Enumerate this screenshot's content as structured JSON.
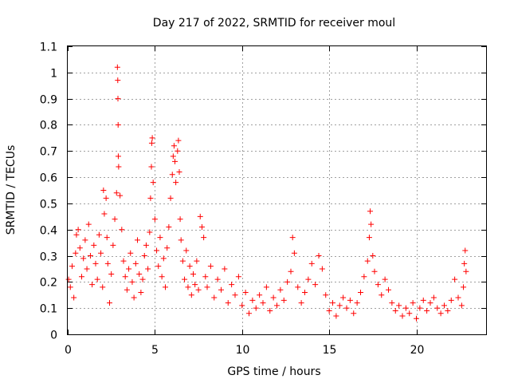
{
  "chart_data": {
    "type": "scatter",
    "title": "Day 217 of 2022, SRMTID for receiver moul",
    "xlabel": "GPS time / hours",
    "ylabel": "SRMTID / TECUs",
    "xlim": [
      0,
      24
    ],
    "ylim": [
      0,
      1.1
    ],
    "xticks": [
      0,
      5,
      10,
      15,
      20
    ],
    "yticks": [
      0,
      0.1,
      0.2,
      0.3,
      0.4,
      0.5,
      0.6,
      0.7,
      0.8,
      0.9,
      1,
      1.1
    ],
    "xtick_labels": [
      "0",
      "5",
      "10",
      "15",
      "20"
    ],
    "ytick_labels": [
      "0",
      "0.1",
      "0.2",
      "0.3",
      "0.4",
      "0.5",
      "0.6",
      "0.7",
      "0.8",
      "0.9",
      "1",
      "1.1"
    ],
    "grid": true,
    "marker": "+",
    "color": "#ff0000",
    "series": [
      {
        "name": "SRMTID",
        "points": [
          [
            0.05,
            0.21
          ],
          [
            0.15,
            0.18
          ],
          [
            0.25,
            0.26
          ],
          [
            0.35,
            0.14
          ],
          [
            0.45,
            0.31
          ],
          [
            0.5,
            0.38
          ],
          [
            0.6,
            0.4
          ],
          [
            0.7,
            0.33
          ],
          [
            0.8,
            0.22
          ],
          [
            0.9,
            0.29
          ],
          [
            1.0,
            0.36
          ],
          [
            1.1,
            0.25
          ],
          [
            1.2,
            0.42
          ],
          [
            1.3,
            0.3
          ],
          [
            1.4,
            0.19
          ],
          [
            1.5,
            0.34
          ],
          [
            1.6,
            0.27
          ],
          [
            1.7,
            0.21
          ],
          [
            1.8,
            0.38
          ],
          [
            1.9,
            0.31
          ],
          [
            2.0,
            0.18
          ],
          [
            2.05,
            0.55
          ],
          [
            2.1,
            0.46
          ],
          [
            2.2,
            0.52
          ],
          [
            2.25,
            0.37
          ],
          [
            2.3,
            0.27
          ],
          [
            2.4,
            0.12
          ],
          [
            2.5,
            0.23
          ],
          [
            2.6,
            0.34
          ],
          [
            2.7,
            0.44
          ],
          [
            2.8,
            0.54
          ],
          [
            2.85,
            1.02
          ],
          [
            2.87,
            0.97
          ],
          [
            2.88,
            0.9
          ],
          [
            2.89,
            0.8
          ],
          [
            2.9,
            0.68
          ],
          [
            2.92,
            0.64
          ],
          [
            3.0,
            0.53
          ],
          [
            3.1,
            0.4
          ],
          [
            3.2,
            0.28
          ],
          [
            3.3,
            0.22
          ],
          [
            3.4,
            0.17
          ],
          [
            3.5,
            0.25
          ],
          [
            3.6,
            0.31
          ],
          [
            3.7,
            0.2
          ],
          [
            3.8,
            0.14
          ],
          [
            3.9,
            0.27
          ],
          [
            4.0,
            0.36
          ],
          [
            4.1,
            0.23
          ],
          [
            4.2,
            0.16
          ],
          [
            4.3,
            0.21
          ],
          [
            4.4,
            0.3
          ],
          [
            4.5,
            0.34
          ],
          [
            4.6,
            0.25
          ],
          [
            4.7,
            0.39
          ],
          [
            4.75,
            0.52
          ],
          [
            4.8,
            0.64
          ],
          [
            4.82,
            0.73
          ],
          [
            4.85,
            0.75
          ],
          [
            4.9,
            0.58
          ],
          [
            5.0,
            0.44
          ],
          [
            5.1,
            0.32
          ],
          [
            5.2,
            0.26
          ],
          [
            5.3,
            0.37
          ],
          [
            5.4,
            0.22
          ],
          [
            5.5,
            0.29
          ],
          [
            5.6,
            0.18
          ],
          [
            5.7,
            0.33
          ],
          [
            5.8,
            0.41
          ],
          [
            5.9,
            0.52
          ],
          [
            6.0,
            0.61
          ],
          [
            6.05,
            0.68
          ],
          [
            6.1,
            0.72
          ],
          [
            6.15,
            0.66
          ],
          [
            6.2,
            0.58
          ],
          [
            6.3,
            0.7
          ],
          [
            6.35,
            0.74
          ],
          [
            6.4,
            0.62
          ],
          [
            6.45,
            0.44
          ],
          [
            6.5,
            0.36
          ],
          [
            6.6,
            0.28
          ],
          [
            6.7,
            0.21
          ],
          [
            6.8,
            0.32
          ],
          [
            6.9,
            0.18
          ],
          [
            7.0,
            0.26
          ],
          [
            7.1,
            0.15
          ],
          [
            7.2,
            0.23
          ],
          [
            7.3,
            0.19
          ],
          [
            7.4,
            0.28
          ],
          [
            7.5,
            0.17
          ],
          [
            7.6,
            0.45
          ],
          [
            7.7,
            0.41
          ],
          [
            7.8,
            0.37
          ],
          [
            7.9,
            0.22
          ],
          [
            8.0,
            0.18
          ],
          [
            8.2,
            0.26
          ],
          [
            8.4,
            0.14
          ],
          [
            8.6,
            0.21
          ],
          [
            8.8,
            0.17
          ],
          [
            9.0,
            0.25
          ],
          [
            9.2,
            0.12
          ],
          [
            9.4,
            0.19
          ],
          [
            9.6,
            0.15
          ],
          [
            9.8,
            0.22
          ],
          [
            10.0,
            0.11
          ],
          [
            10.2,
            0.16
          ],
          [
            10.4,
            0.08
          ],
          [
            10.6,
            0.13
          ],
          [
            10.8,
            0.1
          ],
          [
            11.0,
            0.15
          ],
          [
            11.2,
            0.12
          ],
          [
            11.4,
            0.18
          ],
          [
            11.6,
            0.09
          ],
          [
            11.8,
            0.14
          ],
          [
            12.0,
            0.11
          ],
          [
            12.2,
            0.17
          ],
          [
            12.4,
            0.13
          ],
          [
            12.6,
            0.2
          ],
          [
            12.8,
            0.24
          ],
          [
            12.9,
            0.37
          ],
          [
            13.0,
            0.31
          ],
          [
            13.2,
            0.18
          ],
          [
            13.4,
            0.12
          ],
          [
            13.6,
            0.16
          ],
          [
            13.8,
            0.21
          ],
          [
            14.0,
            0.27
          ],
          [
            14.2,
            0.19
          ],
          [
            14.4,
            0.3
          ],
          [
            14.6,
            0.25
          ],
          [
            14.8,
            0.15
          ],
          [
            15.0,
            0.09
          ],
          [
            15.2,
            0.12
          ],
          [
            15.4,
            0.07
          ],
          [
            15.6,
            0.11
          ],
          [
            15.8,
            0.14
          ],
          [
            16.0,
            0.1
          ],
          [
            16.2,
            0.13
          ],
          [
            16.4,
            0.08
          ],
          [
            16.6,
            0.12
          ],
          [
            16.8,
            0.16
          ],
          [
            17.0,
            0.22
          ],
          [
            17.2,
            0.28
          ],
          [
            17.3,
            0.37
          ],
          [
            17.35,
            0.47
          ],
          [
            17.4,
            0.42
          ],
          [
            17.5,
            0.3
          ],
          [
            17.6,
            0.24
          ],
          [
            17.8,
            0.19
          ],
          [
            18.0,
            0.15
          ],
          [
            18.2,
            0.21
          ],
          [
            18.4,
            0.17
          ],
          [
            18.6,
            0.12
          ],
          [
            18.8,
            0.09
          ],
          [
            19.0,
            0.11
          ],
          [
            19.2,
            0.07
          ],
          [
            19.4,
            0.1
          ],
          [
            19.6,
            0.08
          ],
          [
            19.8,
            0.12
          ],
          [
            20.0,
            0.06
          ],
          [
            20.2,
            0.1
          ],
          [
            20.4,
            0.13
          ],
          [
            20.6,
            0.09
          ],
          [
            20.8,
            0.12
          ],
          [
            21.0,
            0.14
          ],
          [
            21.2,
            0.1
          ],
          [
            21.4,
            0.08
          ],
          [
            21.6,
            0.11
          ],
          [
            21.8,
            0.09
          ],
          [
            22.0,
            0.13
          ],
          [
            22.2,
            0.21
          ],
          [
            22.4,
            0.14
          ],
          [
            22.6,
            0.11
          ],
          [
            22.7,
            0.18
          ],
          [
            22.75,
            0.27
          ],
          [
            22.8,
            0.32
          ],
          [
            22.85,
            0.24
          ]
        ]
      }
    ]
  }
}
